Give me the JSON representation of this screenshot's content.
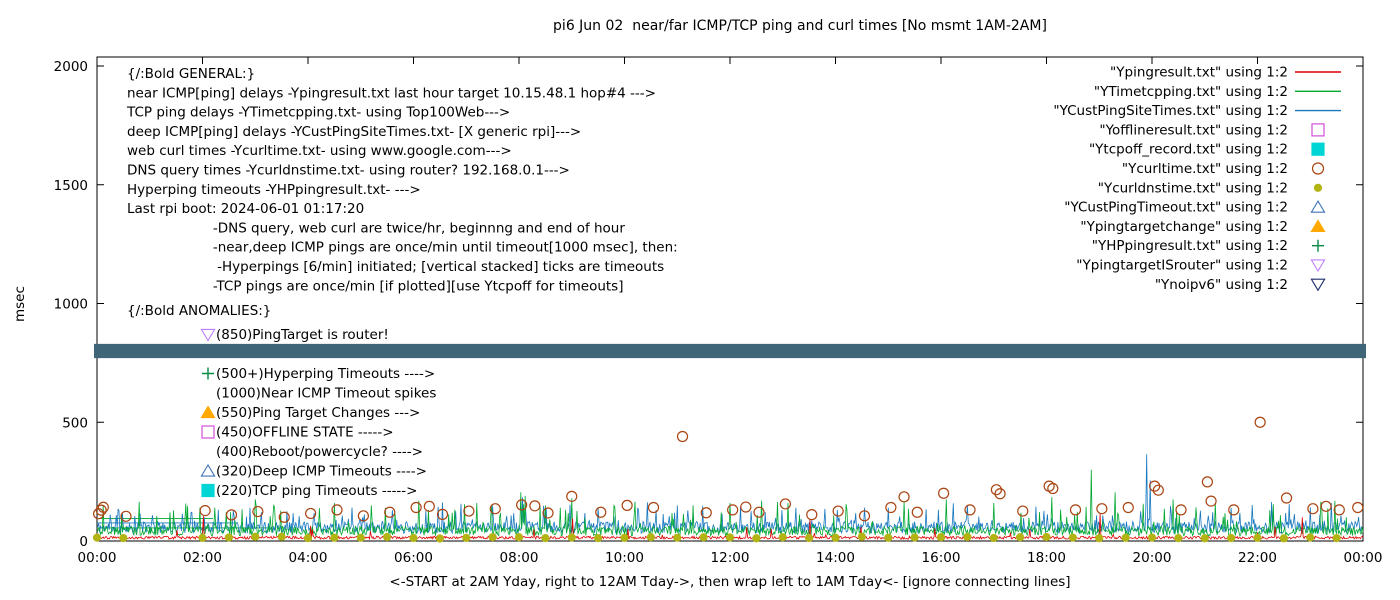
{
  "chart_data": {
    "type": "line",
    "title": "pi6 Jun 02  near/far ICMP/TCP ping and curl times [No msmt 1AM-2AM]",
    "xlabel": "<-START at 2AM Yday, right to 12AM Tday->, then wrap left to 1AM Tday<- [ignore connecting lines]",
    "ylabel": "msec",
    "ylim": [
      0,
      2000
    ],
    "xlim_hours": [
      0,
      24
    ],
    "grid": false,
    "legend_position": "top-right",
    "yticks": [
      0,
      500,
      1000,
      1500,
      2000
    ],
    "xtick_labels": [
      "00:00",
      "02:00",
      "04:00",
      "06:00",
      "08:00",
      "10:00",
      "12:00",
      "14:00",
      "16:00",
      "18:00",
      "20:00",
      "22:00",
      "00:00"
    ],
    "series": [
      {
        "name": "YCustPingSiteTimes.txt",
        "color": "#1878be",
        "base": 32,
        "jitter": 50,
        "spike_freq": 0.1,
        "spike_extra": 90,
        "spikes": [
          [
            0.4,
            135
          ],
          [
            1.8,
            120
          ],
          [
            2.9,
            140
          ],
          [
            3.6,
            125
          ],
          [
            5.6,
            130
          ],
          [
            6.8,
            125
          ],
          [
            7.5,
            150
          ],
          [
            8.06,
            185
          ],
          [
            9.5,
            140
          ],
          [
            10.6,
            130
          ],
          [
            11.0,
            150
          ],
          [
            12.2,
            145
          ],
          [
            13.8,
            135
          ],
          [
            15.0,
            140
          ],
          [
            16.5,
            150
          ],
          [
            17.8,
            145
          ],
          [
            19.9,
            365
          ],
          [
            19.97,
            255
          ],
          [
            21.5,
            140
          ],
          [
            22.6,
            155
          ],
          [
            23.4,
            160
          ]
        ]
      },
      {
        "name": "YTimetcpping.txt",
        "color": "#00a832",
        "base": 22,
        "jitter": 40,
        "spike_freq": 0.09,
        "spike_extra": 110,
        "spikes": [
          [
            0.8,
            165
          ],
          [
            1.95,
            140
          ],
          [
            3.0,
            175
          ],
          [
            3.35,
            150
          ],
          [
            4.5,
            160
          ],
          [
            5.2,
            150
          ],
          [
            6.1,
            170
          ],
          [
            7.2,
            160
          ],
          [
            8.03,
            205
          ],
          [
            8.12,
            190
          ],
          [
            8.5,
            150
          ],
          [
            9.0,
            180
          ],
          [
            9.8,
            150
          ],
          [
            10.2,
            165
          ],
          [
            11.3,
            150
          ],
          [
            12.0,
            160
          ],
          [
            12.6,
            170
          ],
          [
            13.1,
            160
          ],
          [
            14.2,
            155
          ],
          [
            15.3,
            165
          ],
          [
            16.1,
            175
          ],
          [
            17.0,
            160
          ],
          [
            18.1,
            185
          ],
          [
            18.85,
            300
          ],
          [
            19.3,
            205
          ],
          [
            20.4,
            175
          ],
          [
            21.2,
            160
          ],
          [
            22.3,
            155
          ],
          [
            23.2,
            165
          ]
        ]
      },
      {
        "name": "Ypingresult.txt",
        "color": "#e00000",
        "base": 8,
        "jitter": 12,
        "spike_freq": 0.02,
        "spike_extra": 50,
        "spikes": [
          [
            2.02,
            105
          ],
          [
            9.02,
            95
          ],
          [
            13.52,
            90
          ],
          [
            19.02,
            115
          ],
          [
            22.85,
            100
          ]
        ]
      }
    ],
    "artifact_lines": [
      {
        "color": "#00a832",
        "y": 95,
        "t0": 0.0,
        "t1": 2.2
      },
      {
        "color": "#1878be",
        "y": 76,
        "t0": 0.0,
        "t1": 2.6
      },
      {
        "color": "#00a832",
        "y": 55,
        "t0": 0.0,
        "t1": 3.3
      }
    ],
    "scatter": [
      {
        "name": "Ycurltime.txt",
        "marker": "circle",
        "fill": false,
        "color": "#aa4411",
        "size": 5,
        "points": [
          [
            0.03,
            115
          ],
          [
            0.08,
            130
          ],
          [
            0.12,
            142
          ],
          [
            0.55,
            104
          ],
          [
            2.05,
            128
          ],
          [
            2.55,
            110
          ],
          [
            3.05,
            124
          ],
          [
            3.55,
            100
          ],
          [
            4.05,
            116
          ],
          [
            4.55,
            131
          ],
          [
            5.05,
            106
          ],
          [
            5.55,
            121
          ],
          [
            6.05,
            141
          ],
          [
            6.3,
            146
          ],
          [
            6.55,
            112
          ],
          [
            7.05,
            126
          ],
          [
            7.55,
            136
          ],
          [
            8.05,
            152
          ],
          [
            8.3,
            148
          ],
          [
            8.55,
            118
          ],
          [
            9.0,
            188
          ],
          [
            9.55,
            121
          ],
          [
            10.05,
            150
          ],
          [
            10.55,
            141
          ],
          [
            11.1,
            440
          ],
          [
            11.55,
            119
          ],
          [
            12.05,
            131
          ],
          [
            12.3,
            143
          ],
          [
            12.55,
            121
          ],
          [
            13.05,
            156
          ],
          [
            13.55,
            111
          ],
          [
            14.05,
            126
          ],
          [
            14.55,
            106
          ],
          [
            15.05,
            141
          ],
          [
            15.3,
            186
          ],
          [
            15.55,
            121
          ],
          [
            16.05,
            201
          ],
          [
            16.55,
            131
          ],
          [
            17.05,
            216
          ],
          [
            17.12,
            199
          ],
          [
            17.55,
            126
          ],
          [
            18.05,
            231
          ],
          [
            18.12,
            221
          ],
          [
            18.55,
            131
          ],
          [
            19.05,
            136
          ],
          [
            19.55,
            141
          ],
          [
            20.05,
            231
          ],
          [
            20.12,
            214
          ],
          [
            20.55,
            131
          ],
          [
            21.05,
            249
          ],
          [
            21.12,
            168
          ],
          [
            21.55,
            131
          ],
          [
            22.05,
            500
          ],
          [
            22.55,
            181
          ],
          [
            23.05,
            136
          ],
          [
            23.3,
            146
          ],
          [
            23.55,
            131
          ],
          [
            23.9,
            141
          ]
        ]
      },
      {
        "name": "Ycurldnstime.txt",
        "marker": "circle",
        "fill": true,
        "color": "#b2b414",
        "size": 3.5,
        "generate": {
          "t0": 0,
          "t1": 23.5,
          "step": 0.5,
          "value": 14,
          "jitter": 8,
          "skip": [
            1.0,
            1.5
          ]
        }
      }
    ],
    "band": {
      "name": "pingtarget-is-router-band",
      "t0": 0,
      "t1": 24,
      "value_msec": 800,
      "half_msec": 30,
      "color": "#3f6678"
    },
    "annotations": {
      "general": [
        "{/:Bold GENERAL:}",
        "near ICMP[ping] delays -Ypingresult.txt last hour target 10.15.48.1 hop#4 --->",
        "TCP ping delays -YTimetcpping.txt- using Top100Web--->",
        "deep ICMP[ping] delays -YCustPingSiteTimes.txt- [X generic rpi]--->",
        "web curl times -Ycurltime.txt- using www.google.com--->",
        "DNS query times -Ycurldnstime.txt- using router? 192.168.0.1--->",
        "Hyperping timeouts -YHPpingresult.txt- --->",
        "Last rpi boot: 2024-06-01 01:17:20",
        "                    -DNS query, web curl are twice/hr, beginnng and end of hour",
        "                    -near,deep ICMP pings are once/min until timeout[1000 msec], then:",
        "                     -Hyperpings [6/min] initiated; [vertical stacked] ticks are timeouts",
        "                    -TCP pings are once/min [if plotted][use Ytcpoff for timeouts]"
      ],
      "anomalies_header": "{/:Bold ANOMALIES:}",
      "anomalies": [
        {
          "row": 0,
          "marker": "triangle-down",
          "fill": false,
          "color": "#c080ff",
          "text": "(850)PingTarget is router!"
        },
        {
          "row": 2,
          "marker": "plus",
          "fill": false,
          "color": "#008844",
          "text": "(500+)Hyperping Timeouts ---->"
        },
        {
          "row": 3,
          "marker": null,
          "fill": false,
          "color": "",
          "text": "(1000)Near ICMP Timeout spikes"
        },
        {
          "row": 4,
          "marker": "triangle-up",
          "fill": true,
          "color": "#ffa800",
          "text": "(550)Ping Target Changes --->"
        },
        {
          "row": 5,
          "marker": "square",
          "fill": false,
          "color": "#d050d8",
          "text": "(450)OFFLINE STATE ----->"
        },
        {
          "row": 6,
          "marker": null,
          "fill": false,
          "color": "",
          "text": "(400)Reboot/powercycle? ---->"
        },
        {
          "row": 7,
          "marker": "triangle-up",
          "fill": false,
          "color": "#3f74b8",
          "text": "(320)Deep ICMP Timeouts ---->"
        },
        {
          "row": 8,
          "marker": "square",
          "fill": true,
          "color": "#00d5d5",
          "text": "(220)TCP ping Timeouts ----->"
        }
      ]
    },
    "legend": [
      {
        "label": "\"Ypingresult.txt\" using 1:2",
        "marker": "line",
        "fill": false,
        "color": "#e00000"
      },
      {
        "label": "\"YTimetcpping.txt\" using 1:2",
        "marker": "line",
        "fill": false,
        "color": "#00a832"
      },
      {
        "label": "\"YCustPingSiteTimes.txt\" using 1:2",
        "marker": "line",
        "fill": false,
        "color": "#1878be"
      },
      {
        "label": "\"Yofflineresult.txt\" using 1:2",
        "marker": "square",
        "fill": false,
        "color": "#d050d8"
      },
      {
        "label": "\"Ytcpoff_record.txt\" using 1:2",
        "marker": "square",
        "fill": true,
        "color": "#00d5d5"
      },
      {
        "label": "\"Ycurltime.txt\" using 1:2",
        "marker": "circle",
        "fill": false,
        "color": "#aa4411"
      },
      {
        "label": "\"Ycurldnstime.txt\" using 1:2",
        "marker": "circle",
        "fill": true,
        "color": "#b2b414"
      },
      {
        "label": "\"YCustPingTimeout.txt\" using 1:2",
        "marker": "triangle-up",
        "fill": false,
        "color": "#3f74b8"
      },
      {
        "label": "\"Ypingtargetchange\" using 1:2",
        "marker": "triangle-up",
        "fill": true,
        "color": "#ffa800"
      },
      {
        "label": "\"YHPpingresult.txt\" using 1:2",
        "marker": "plus",
        "fill": false,
        "color": "#008844"
      },
      {
        "label": "\"YpingtargetISrouter\" using 1:2",
        "marker": "triangle-down",
        "fill": false,
        "color": "#c080ff"
      },
      {
        "label": "\"Ynoipv6\" using 1:2",
        "marker": "triangle-down",
        "fill": false,
        "color": "#1b2d6b"
      }
    ]
  }
}
